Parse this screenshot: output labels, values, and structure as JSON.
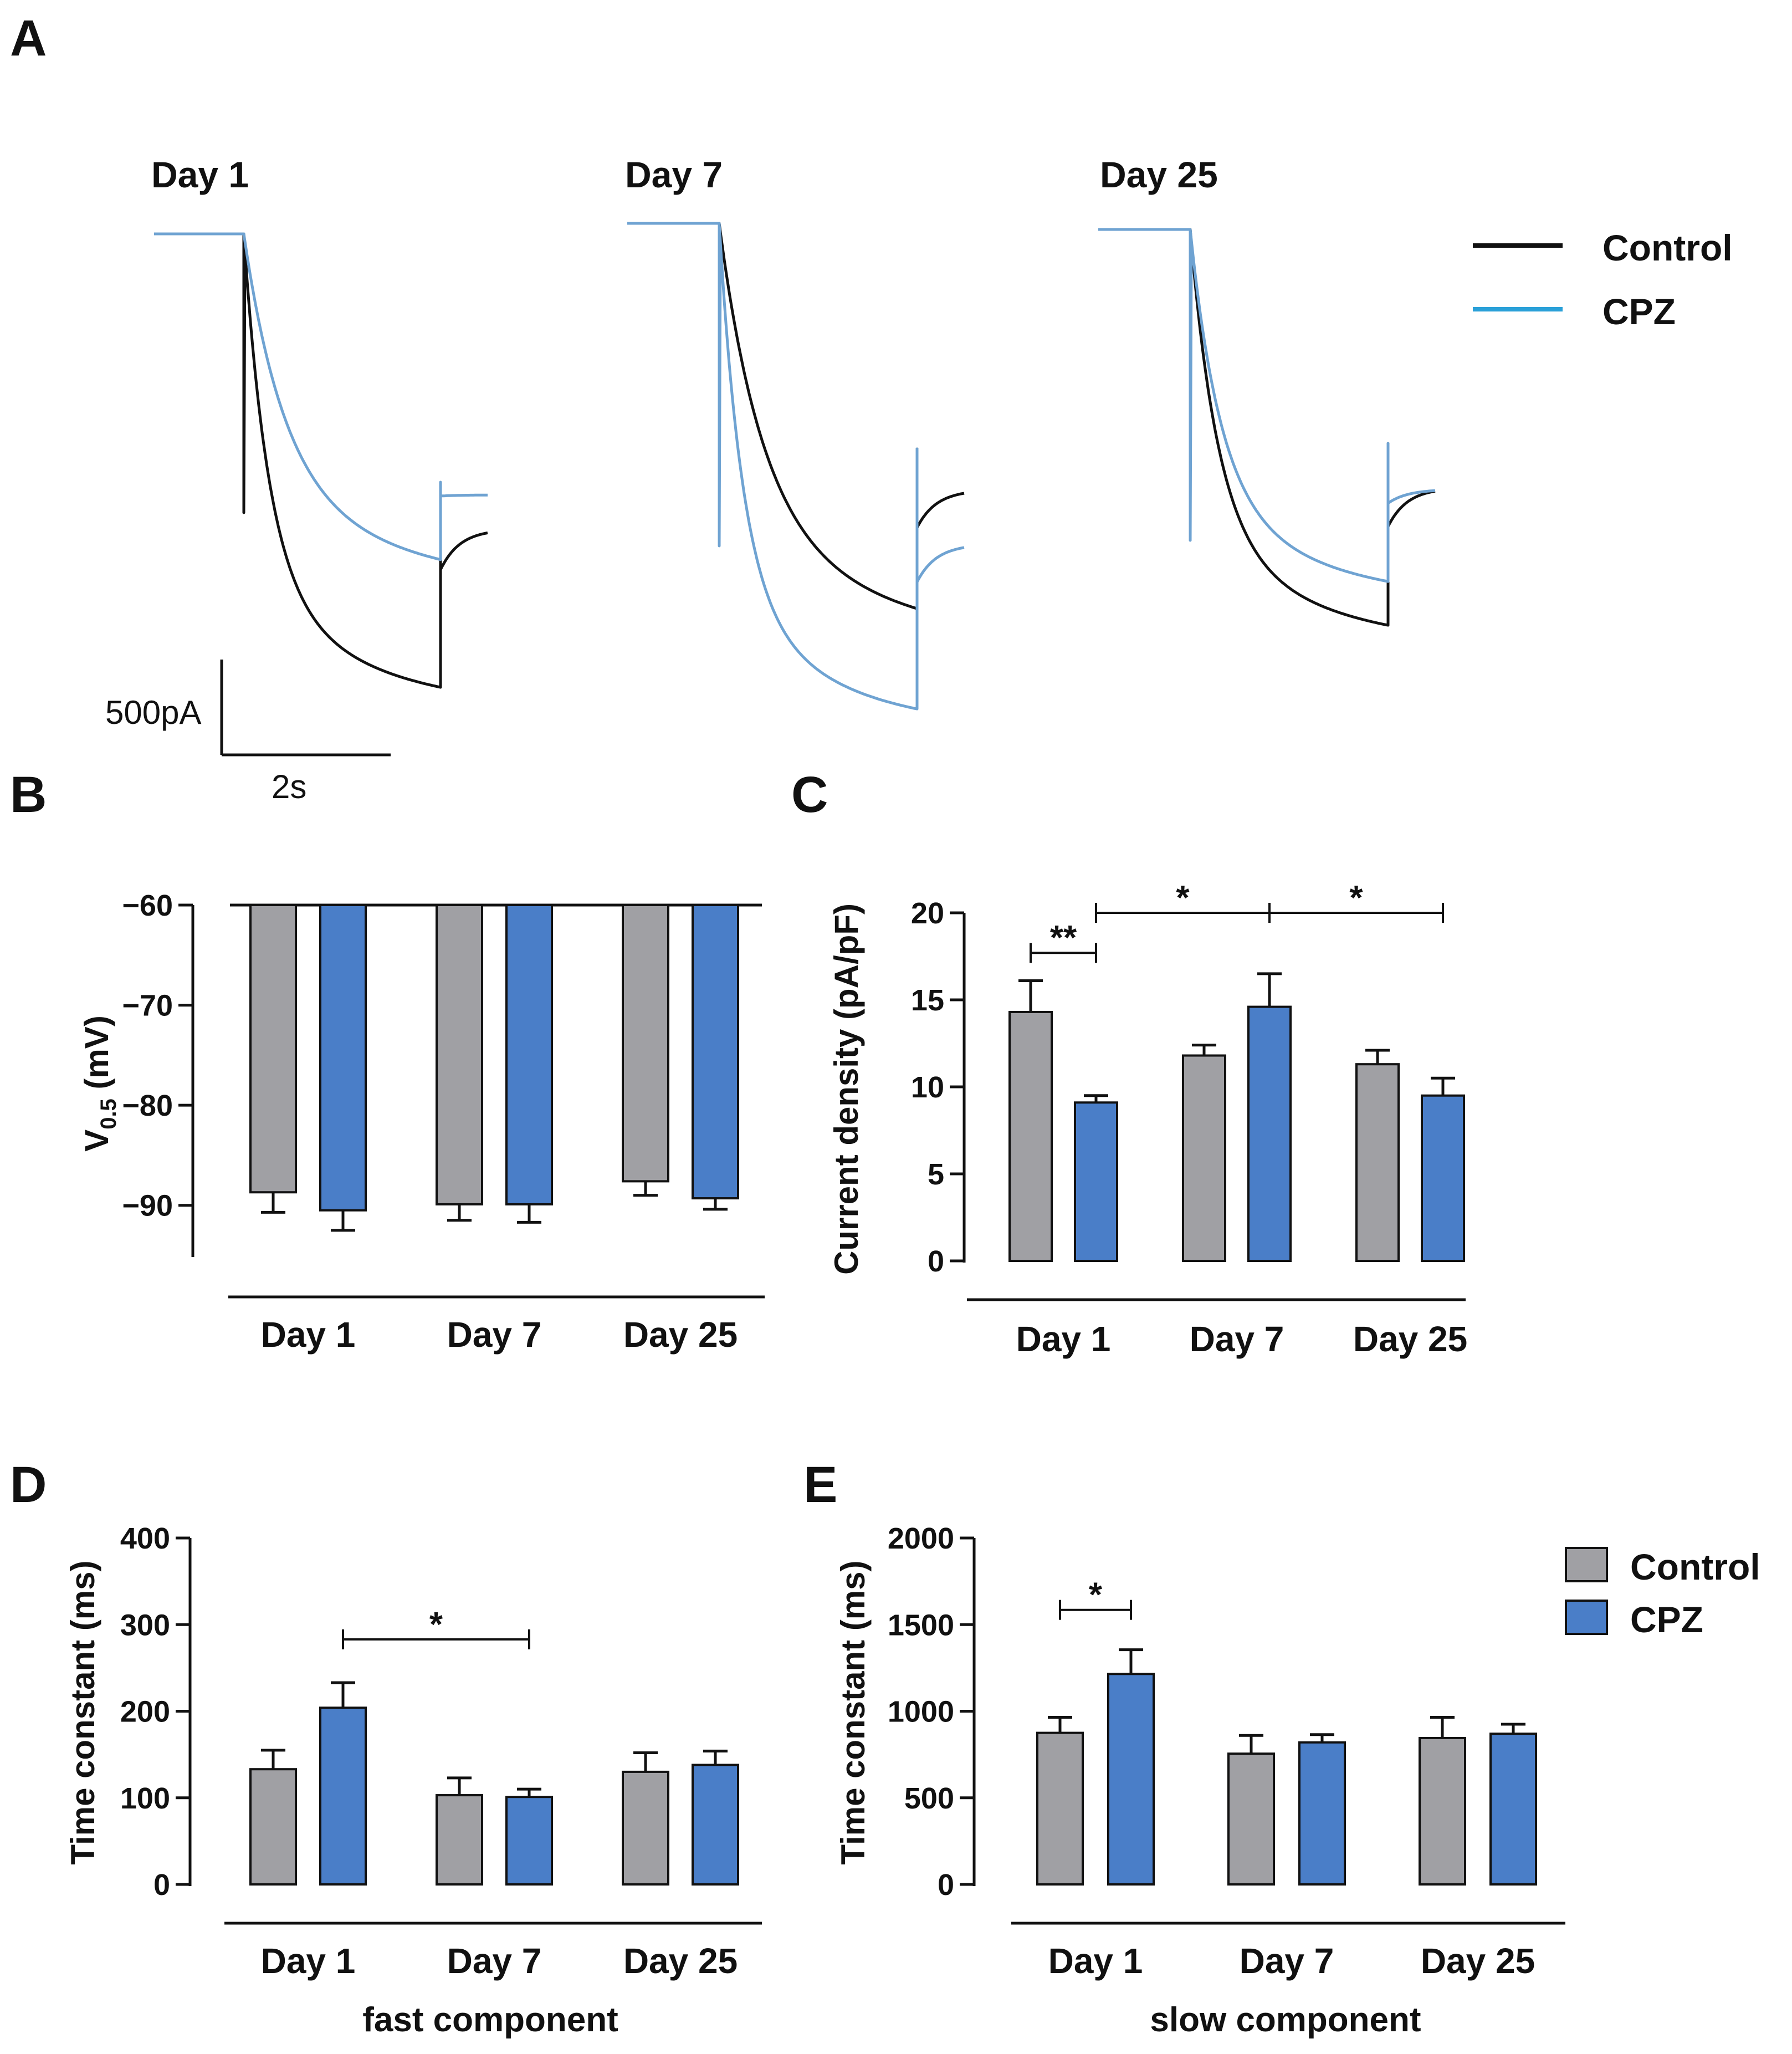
{
  "colors": {
    "control": "#a0a0a4",
    "cpz": "#4a7ec8",
    "trace_control": "#111111",
    "trace_cpz": "#6fa3d2",
    "legend_line_cpz": "#2aa0d8"
  },
  "panels": {
    "A": {
      "letter": "A",
      "days": [
        "Day 1",
        "Day 7",
        "Day 25"
      ],
      "legend": [
        "Control",
        "CPZ"
      ],
      "scale_current": "500pA",
      "scale_time": "2s"
    }
  },
  "chart_data": [
    {
      "panel": "B",
      "type": "bar",
      "categories": [
        "Day 1",
        "Day 7",
        "Day 25"
      ],
      "series": [
        {
          "name": "Control",
          "values": [
            -88.7,
            -89.9,
            -87.6
          ],
          "errors": [
            2.0,
            1.6,
            1.4
          ]
        },
        {
          "name": "CPZ",
          "values": [
            -90.5,
            -89.9,
            -89.3
          ],
          "errors": [
            2.0,
            1.8,
            1.1
          ]
        }
      ],
      "ylabel_main": "V",
      "ylabel_sub": "0.5",
      "ylabel_unit": " (mV)",
      "ylim": [
        -95,
        -60
      ],
      "yticks": [
        -60,
        -70,
        -80,
        -90
      ],
      "ytick_labels": [
        "−60",
        "−70",
        "−80",
        "−90"
      ],
      "title": "",
      "xlabel": "",
      "significance": []
    },
    {
      "panel": "C",
      "type": "bar",
      "categories": [
        "Day 1",
        "Day 7",
        "Day 25"
      ],
      "series": [
        {
          "name": "Control",
          "values": [
            14.3,
            11.8,
            11.3
          ],
          "errors": [
            1.8,
            0.6,
            0.8
          ]
        },
        {
          "name": "CPZ",
          "values": [
            9.1,
            14.6,
            9.5
          ],
          "errors": [
            0.4,
            1.9,
            1.0
          ]
        }
      ],
      "ylabel": "Current density (pA/pF)",
      "ylim": [
        0,
        20
      ],
      "yticks": [
        0,
        5,
        10,
        15,
        20
      ],
      "ytick_labels": [
        "0",
        "5",
        "10",
        "15",
        "20"
      ],
      "title": "",
      "xlabel": "",
      "significance": [
        {
          "from": [
            0,
            0
          ],
          "to": [
            0,
            1
          ],
          "label": "**",
          "y": 17.7
        },
        {
          "from": [
            0,
            1
          ],
          "to": [
            1,
            1
          ],
          "label": "*",
          "y": 20.0
        },
        {
          "from": [
            1,
            1
          ],
          "to": [
            2,
            1
          ],
          "label": "*",
          "y": 20.0
        }
      ]
    },
    {
      "panel": "D",
      "type": "bar",
      "categories": [
        "Day 1",
        "Day 7",
        "Day 25"
      ],
      "series": [
        {
          "name": "Control",
          "values": [
            133,
            103,
            130
          ],
          "errors": [
            22,
            20,
            22
          ]
        },
        {
          "name": "CPZ",
          "values": [
            204,
            101,
            138
          ],
          "errors": [
            29,
            9,
            16
          ]
        }
      ],
      "ylabel": "Time constant (ms)",
      "ylim": [
        0,
        400
      ],
      "yticks": [
        0,
        100,
        200,
        300,
        400
      ],
      "ytick_labels": [
        "0",
        "100",
        "200",
        "300",
        "400"
      ],
      "title": "",
      "xlabel": "fast component",
      "significance": [
        {
          "from": [
            0,
            1
          ],
          "to": [
            1,
            1
          ],
          "label": "*",
          "y": 283
        }
      ]
    },
    {
      "panel": "E",
      "type": "bar",
      "categories": [
        "Day 1",
        "Day 7",
        "Day 25"
      ],
      "series": [
        {
          "name": "Control",
          "values": [
            875,
            755,
            845
          ],
          "errors": [
            90,
            105,
            120
          ]
        },
        {
          "name": "CPZ",
          "values": [
            1215,
            820,
            870
          ],
          "errors": [
            140,
            45,
            55
          ]
        }
      ],
      "ylabel": "Time constant (ms)",
      "ylim": [
        0,
        2000
      ],
      "yticks": [
        0,
        500,
        1000,
        1500,
        2000
      ],
      "ytick_labels": [
        "0",
        "500",
        "1000",
        "1500",
        "2000"
      ],
      "title": "",
      "xlabel": "slow component",
      "legend": [
        "Control",
        "CPZ"
      ],
      "significance": [
        {
          "from": [
            0,
            0
          ],
          "to": [
            0,
            1
          ],
          "label": "*",
          "y": 1585
        }
      ]
    }
  ]
}
